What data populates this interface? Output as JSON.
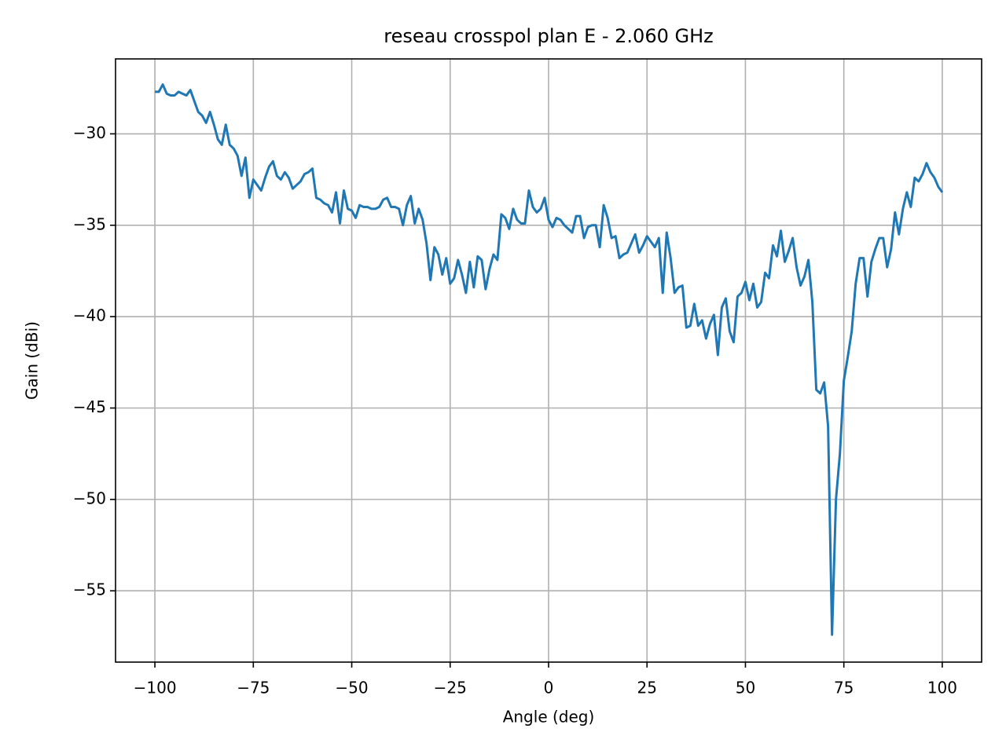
{
  "chart_data": {
    "type": "line",
    "title": "reseau crosspol plan E - 2.060 GHz",
    "x_label": "Angle (deg)",
    "y_label": "Gain (dBi)",
    "xlim": [
      -110,
      110
    ],
    "ylim": [
      -58.9,
      -25.9
    ],
    "xticks": [
      {
        "value": -100,
        "label": "−100"
      },
      {
        "value": -75,
        "label": "−75"
      },
      {
        "value": -50,
        "label": "−50"
      },
      {
        "value": -25,
        "label": "−25"
      },
      0,
      25,
      50,
      75,
      100
    ],
    "yticks": [
      {
        "value": -55,
        "label": "−55"
      },
      {
        "value": -50,
        "label": "−50"
      },
      {
        "value": -45,
        "label": "−45"
      },
      {
        "value": -40,
        "label": "−40"
      },
      {
        "value": -35,
        "label": "−35"
      },
      {
        "value": -30,
        "label": "−30"
      }
    ],
    "grid": true,
    "x": [
      -100,
      -99,
      -98,
      -97,
      -96,
      -95,
      -94,
      -93,
      -92,
      -91,
      -90,
      -89,
      -88,
      -87,
      -86,
      -85,
      -84,
      -83,
      -82,
      -81,
      -80,
      -79,
      -78,
      -77,
      -76,
      -75,
      -74,
      -73,
      -72,
      -71,
      -70,
      -69,
      -68,
      -67,
      -66,
      -65,
      -64,
      -63,
      -62,
      -61,
      -60,
      -59,
      -58,
      -57,
      -56,
      -55,
      -54,
      -53,
      -52,
      -51,
      -50,
      -49,
      -48,
      -47,
      -46,
      -45,
      -44,
      -43,
      -42,
      -41,
      -40,
      -39,
      -38,
      -37,
      -36,
      -35,
      -34,
      -33,
      -32,
      -31,
      -30,
      -29,
      -28,
      -27,
      -26,
      -25,
      -24,
      -23,
      -22,
      -21,
      -20,
      -19,
      -18,
      -17,
      -16,
      -15,
      -14,
      -13,
      -12,
      -11,
      -10,
      -9,
      -8,
      -7,
      -6,
      -5,
      -4,
      -3,
      -2,
      -1,
      0,
      1,
      2,
      3,
      4,
      5,
      6,
      7,
      8,
      9,
      10,
      11,
      12,
      13,
      14,
      15,
      16,
      17,
      18,
      19,
      20,
      21,
      22,
      23,
      24,
      25,
      26,
      27,
      28,
      29,
      30,
      31,
      32,
      33,
      34,
      35,
      36,
      37,
      38,
      39,
      40,
      41,
      42,
      43,
      44,
      45,
      46,
      47,
      48,
      49,
      50,
      51,
      52,
      53,
      54,
      55,
      56,
      57,
      58,
      59,
      60,
      61,
      62,
      63,
      64,
      65,
      66,
      67,
      68,
      69,
      70,
      71,
      72,
      73,
      74,
      75,
      76,
      77,
      78,
      79,
      80,
      81,
      82,
      83,
      84,
      85,
      86,
      87,
      88,
      89,
      90,
      91,
      92,
      93,
      94,
      95,
      96,
      97,
      98,
      99,
      100
    ],
    "series": [
      {
        "color": "#1f77b4",
        "values": [
          -27.7,
          -27.7,
          -27.3,
          -27.8,
          -27.9,
          -27.9,
          -27.7,
          -27.8,
          -27.9,
          -27.6,
          -28.2,
          -28.8,
          -29.0,
          -29.4,
          -28.8,
          -29.5,
          -30.3,
          -30.6,
          -29.5,
          -30.6,
          -30.8,
          -31.2,
          -32.3,
          -31.3,
          -33.5,
          -32.5,
          -32.8,
          -33.1,
          -32.4,
          -31.8,
          -31.5,
          -32.3,
          -32.5,
          -32.1,
          -32.4,
          -33.0,
          -32.8,
          -32.6,
          -32.2,
          -32.1,
          -31.9,
          -33.5,
          -33.6,
          -33.8,
          -33.9,
          -34.3,
          -33.2,
          -34.9,
          -33.1,
          -34.1,
          -34.2,
          -34.6,
          -33.9,
          -34.0,
          -34.0,
          -34.1,
          -34.1,
          -34.0,
          -33.6,
          -33.5,
          -34.0,
          -34.0,
          -34.1,
          -35.0,
          -33.9,
          -33.4,
          -34.9,
          -34.1,
          -34.7,
          -36.0,
          -38.0,
          -36.2,
          -36.6,
          -37.7,
          -36.8,
          -38.2,
          -37.9,
          -36.9,
          -37.7,
          -38.7,
          -37.0,
          -38.4,
          -36.7,
          -36.9,
          -38.5,
          -37.4,
          -36.6,
          -36.9,
          -34.4,
          -34.6,
          -35.2,
          -34.1,
          -34.7,
          -34.9,
          -34.9,
          -33.1,
          -34.0,
          -34.3,
          -34.1,
          -33.5,
          -34.7,
          -35.1,
          -34.6,
          -34.7,
          -35.0,
          -35.2,
          -35.4,
          -34.5,
          -34.5,
          -35.7,
          -35.1,
          -35.0,
          -35.0,
          -36.2,
          -33.9,
          -34.6,
          -35.7,
          -35.6,
          -36.8,
          -36.6,
          -36.5,
          -36.0,
          -35.5,
          -36.5,
          -36.1,
          -35.6,
          -35.9,
          -36.2,
          -35.7,
          -38.7,
          -35.4,
          -36.8,
          -38.7,
          -38.4,
          -38.3,
          -40.6,
          -40.5,
          -39.3,
          -40.5,
          -40.2,
          -41.2,
          -40.4,
          -39.9,
          -42.1,
          -39.5,
          -39.0,
          -40.8,
          -41.4,
          -38.9,
          -38.7,
          -38.1,
          -39.1,
          -38.2,
          -39.5,
          -39.2,
          -37.6,
          -37.9,
          -36.1,
          -36.7,
          -35.3,
          -37.0,
          -36.4,
          -35.7,
          -37.3,
          -38.3,
          -37.8,
          -36.9,
          -39.2,
          -44.0,
          -44.2,
          -43.6,
          -46.0,
          -57.4,
          -50.0,
          -47.5,
          -43.5,
          -42.2,
          -40.8,
          -38.2,
          -36.8,
          -36.8,
          -38.9,
          -37.0,
          -36.3,
          -35.7,
          -35.7,
          -37.3,
          -36.3,
          -34.3,
          -35.5,
          -34.1,
          -33.2,
          -34.0,
          -32.4,
          -32.6,
          -32.2,
          -31.6,
          -32.1,
          -32.4,
          -32.9,
          -33.2
        ]
      }
    ]
  }
}
